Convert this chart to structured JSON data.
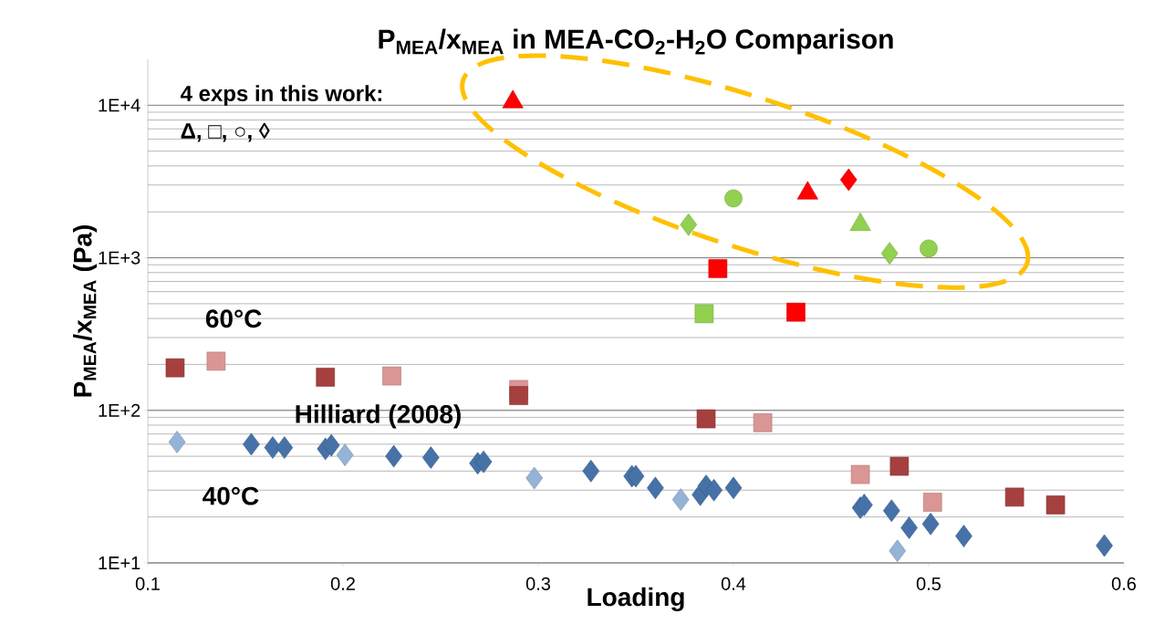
{
  "chart_data": {
    "type": "scatter",
    "title": "P$_{MEA}$/x$_{MEA}$ in MEA-CO$_{2}$-H$_{2}$O Comparison",
    "xlabel": "Loading",
    "ylabel": "P$_{MEA}$/x$_{MEA}$ (Pa)",
    "xlim": [
      0.1,
      0.6
    ],
    "xticks": [
      0.1,
      0.2,
      0.3,
      0.4,
      0.5,
      0.6
    ],
    "ylim": [
      10,
      20000
    ],
    "yticks": [
      {
        "value": 10,
        "label": "1E+1"
      },
      {
        "value": 100,
        "label": "1E+2"
      },
      {
        "value": 1000,
        "label": "1E+3"
      },
      {
        "value": 10000,
        "label": "1E+4"
      }
    ],
    "log": "y",
    "grid": "y",
    "annotations": [
      "4 exps in this work:",
      "Δ, □, ○, ◊",
      "60°C",
      "Hilliard (2008)",
      "40°C"
    ],
    "series": [
      {
        "marker": "diamond",
        "color": "#95b3d7",
        "x": [
          0.115,
          0.201,
          0.298,
          0.373,
          0.484
        ],
        "values": [
          62,
          51,
          36,
          26,
          12
        ]
      },
      {
        "marker": "square",
        "color": "#d99694",
        "x": [
          0.135,
          0.225,
          0.29,
          0.415,
          0.465,
          0.502
        ],
        "values": [
          210,
          168,
          137,
          83,
          38,
          25
        ]
      },
      {
        "marker": "diamond",
        "color": "#4672a8",
        "x": [
          0.153,
          0.164,
          0.17,
          0.191,
          0.194,
          0.226,
          0.245,
          0.269,
          0.272,
          0.327,
          0.348,
          0.35,
          0.36,
          0.383,
          0.386,
          0.39,
          0.4,
          0.465,
          0.467,
          0.481,
          0.49,
          0.501,
          0.518,
          0.59
        ],
        "values": [
          60,
          57,
          57,
          56,
          59,
          50,
          49,
          45,
          46,
          40,
          37,
          37,
          31,
          28,
          32,
          30,
          31,
          23,
          24,
          22,
          17,
          18,
          15,
          13
        ]
      },
      {
        "marker": "square",
        "color": "#a5403f",
        "x": [
          0.114,
          0.191,
          0.29,
          0.386,
          0.485,
          0.544,
          0.565
        ],
        "values": [
          190,
          165,
          125,
          88,
          43,
          27,
          24
        ]
      },
      {
        "marker": "triangle",
        "color": "#ff0000",
        "x": [
          0.287,
          0.438
        ],
        "values": [
          10500,
          2650
        ]
      },
      {
        "marker": "triangle",
        "color": "#92d050",
        "x": [
          0.465
        ],
        "values": [
          1650
        ]
      },
      {
        "marker": "circle",
        "color": "#92d050",
        "x": [
          0.4,
          0.5
        ],
        "values": [
          2450,
          1150
        ]
      },
      {
        "marker": "square",
        "color": "#ff0000",
        "x": [
          0.392,
          0.432
        ],
        "values": [
          850,
          440
        ]
      },
      {
        "marker": "square",
        "color": "#92d050",
        "x": [
          0.385
        ],
        "values": [
          430
        ]
      },
      {
        "marker": "diamond",
        "color": "#92d050",
        "x": [
          0.377,
          0.48
        ],
        "values": [
          1650,
          1070
        ]
      },
      {
        "marker": "diamond",
        "color": "#ff0000",
        "x": [
          0.459
        ],
        "values": [
          3250
        ]
      }
    ]
  }
}
